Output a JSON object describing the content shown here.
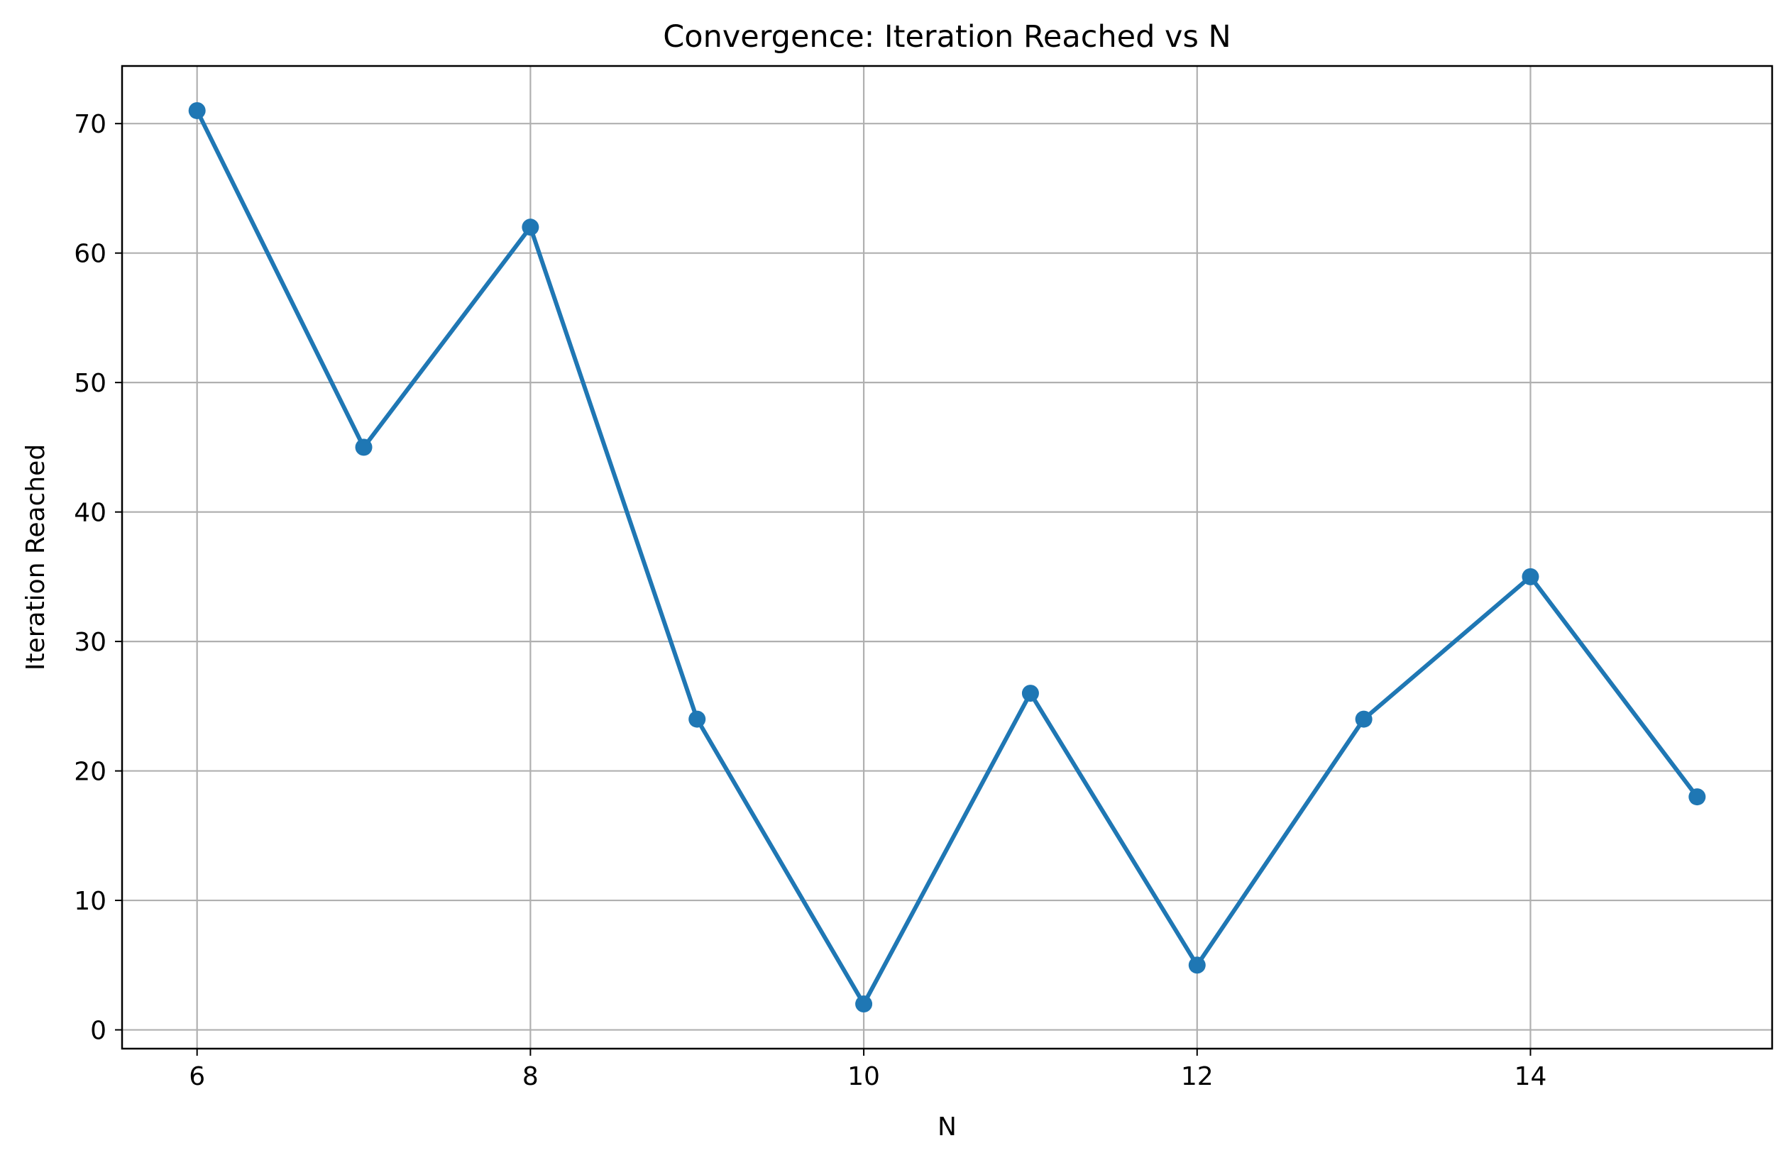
{
  "chart_data": {
    "type": "line",
    "title": "Convergence: Iteration Reached vs N",
    "xlabel": "N",
    "ylabel": "Iteration Reached",
    "x": [
      6,
      7,
      8,
      9,
      10,
      11,
      12,
      13,
      14,
      15
    ],
    "series": [
      {
        "values": [
          71,
          45,
          62,
          24,
          2,
          26,
          5,
          24,
          35,
          18
        ],
        "color": "#1f77b4",
        "marker": "circle"
      }
    ],
    "xlim": [
      5.55,
      15.45
    ],
    "ylim": [
      -1.45,
      74.45
    ],
    "xticks": [
      6,
      8,
      10,
      12,
      14
    ],
    "yticks": [
      0,
      10,
      20,
      30,
      40,
      50,
      60,
      70
    ],
    "grid": true,
    "grid_color": "#b0b0b0"
  }
}
